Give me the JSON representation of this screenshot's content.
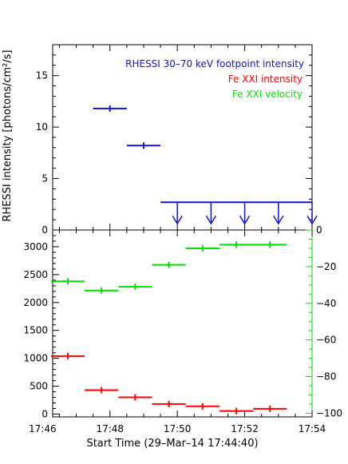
{
  "chart_data": [
    {
      "type": "scatter",
      "panel": "top",
      "ylabel": "RHESSI intensity [photons/cm²/s]",
      "ylim": [
        0,
        18
      ],
      "yticks": [
        "0",
        "5",
        "10",
        "15"
      ],
      "grid": false,
      "legend_position": "top-right",
      "legend": [
        {
          "text": "RHESSI 30–70 keV footpoint intensity",
          "color": "#1414c8"
        },
        {
          "text": "Fe XXI intensity",
          "color": "#ff0000"
        },
        {
          "text": "Fe XXI velocity",
          "color": "#00e000"
        }
      ],
      "series": [
        {
          "name": "RHESSI 30–70 keV footpoint intensity",
          "color": "#1414c8",
          "points": [
            {
              "x0": 17.5,
              "x1": 18.5,
              "y": 11.8
            },
            {
              "x0": 18.5,
              "x1": 19.5,
              "y": 8.2
            }
          ],
          "upper_limits": [
            {
              "x0": 19.5,
              "x1": 20.5,
              "y": 2.7
            },
            {
              "x0": 20.5,
              "x1": 21.5,
              "y": 2.7
            },
            {
              "x0": 21.5,
              "x1": 22.5,
              "y": 2.7
            },
            {
              "x0": 22.5,
              "x1": 23.5,
              "y": 2.7
            },
            {
              "x0": 23.5,
              "x1": 24.0,
              "y": 2.7
            }
          ]
        }
      ]
    },
    {
      "type": "scatter",
      "panel": "bottom",
      "xlabel": "Start Time (29–Mar–14 17:44:40)",
      "xlim": [
        16.3,
        24.0
      ],
      "x_unit": "minutes after 17:30",
      "xticks": [
        "17:46",
        "17:48",
        "17:50",
        "17:52",
        "17:54"
      ],
      "ylim_left": [
        -50,
        3300
      ],
      "yticks_left": [
        "0",
        "500",
        "1000",
        "1500",
        "2000",
        "2500",
        "3000"
      ],
      "ylim_right": [
        -102,
        0
      ],
      "yticks_right": [
        "0",
        "−20",
        "−40",
        "−60",
        "−80",
        "−100"
      ],
      "series": [
        {
          "name": "Fe XXI intensity",
          "color": "#ff0000",
          "axis": "left",
          "points": [
            {
              "x0": 16.25,
              "x1": 17.25,
              "y": 1040
            },
            {
              "x0": 17.25,
              "x1": 18.25,
              "y": 430
            },
            {
              "x0": 18.25,
              "x1": 19.25,
              "y": 300
            },
            {
              "x0": 19.25,
              "x1": 20.25,
              "y": 180
            },
            {
              "x0": 20.25,
              "x1": 21.25,
              "y": 140
            },
            {
              "x0": 21.25,
              "x1": 22.25,
              "y": 55
            },
            {
              "x0": 22.25,
              "x1": 23.25,
              "y": 95
            }
          ]
        },
        {
          "name": "Fe XXI velocity",
          "color": "#00e000",
          "axis": "right",
          "points": [
            {
              "x0": 16.25,
              "x1": 17.25,
              "y": -28
            },
            {
              "x0": 17.25,
              "x1": 18.25,
              "y": -33
            },
            {
              "x0": 18.25,
              "x1": 19.25,
              "y": -31
            },
            {
              "x0": 19.25,
              "x1": 20.25,
              "y": -19
            },
            {
              "x0": 20.25,
              "x1": 21.25,
              "y": -10
            },
            {
              "x0": 21.25,
              "x1": 22.25,
              "y": -8
            },
            {
              "x0": 22.25,
              "x1": 23.25,
              "y": -8
            }
          ]
        }
      ]
    }
  ]
}
